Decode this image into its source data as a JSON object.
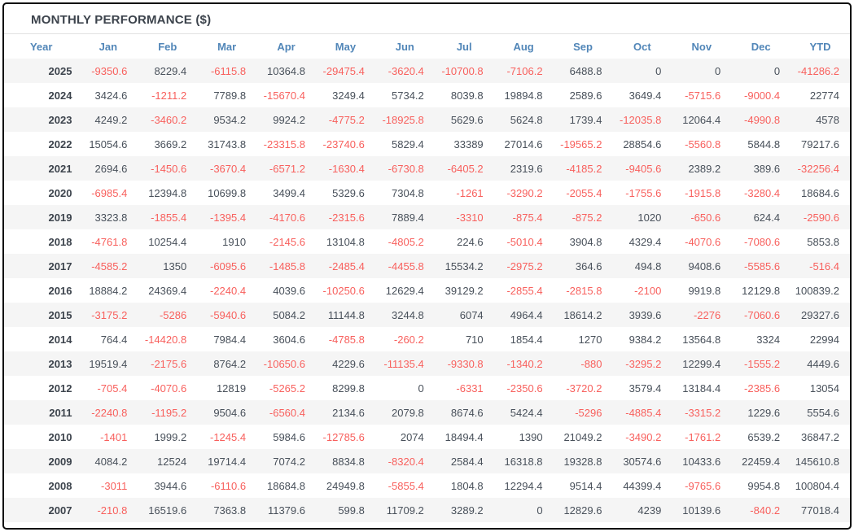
{
  "header": {
    "title": "MONTHLY PERFORMANCE ($)"
  },
  "colors": {
    "frame_border": "#0c0c0c",
    "title_text": "#3c434c",
    "header_blue": "#5186b8",
    "positive_value": "#48505a",
    "negative_value": "#f8605d",
    "row_stripe": "#f5f5f5",
    "title_divider": "#e2e2e2"
  },
  "chart_data": {
    "type": "table",
    "title": "MONTHLY PERFORMANCE ($)",
    "columns": [
      "Year",
      "Jan",
      "Feb",
      "Mar",
      "Apr",
      "May",
      "Jun",
      "Jul",
      "Aug",
      "Sep",
      "Oct",
      "Nov",
      "Dec",
      "YTD"
    ],
    "rows": [
      [
        "2025",
        "-9350.6",
        "8229.4",
        "-6115.8",
        "10364.8",
        "-29475.4",
        "-3620.4",
        "-10700.8",
        "-7106.2",
        "6488.8",
        "0",
        "0",
        "0",
        "-41286.2"
      ],
      [
        "2024",
        "3424.6",
        "-1211.2",
        "7789.8",
        "-15670.4",
        "3249.4",
        "5734.2",
        "8039.8",
        "19894.8",
        "2589.6",
        "3649.4",
        "-5715.6",
        "-9000.4",
        "22774"
      ],
      [
        "2023",
        "4249.2",
        "-3460.2",
        "9534.2",
        "9924.2",
        "-4775.2",
        "-18925.8",
        "5629.6",
        "5624.8",
        "1739.4",
        "-12035.8",
        "12064.4",
        "-4990.8",
        "4578"
      ],
      [
        "2022",
        "15054.6",
        "3669.2",
        "31743.8",
        "-23315.8",
        "-23740.6",
        "5829.4",
        "33389",
        "27014.6",
        "-19565.2",
        "28854.6",
        "-5560.8",
        "5844.8",
        "79217.6"
      ],
      [
        "2021",
        "2694.6",
        "-1450.6",
        "-3670.4",
        "-6571.2",
        "-1630.4",
        "-6730.8",
        "-6405.2",
        "2319.6",
        "-4185.2",
        "-9405.6",
        "2389.2",
        "389.6",
        "-32256.4"
      ],
      [
        "2020",
        "-6985.4",
        "12394.8",
        "10699.8",
        "3499.4",
        "5329.6",
        "7304.8",
        "-1261",
        "-3290.2",
        "-2055.4",
        "-1755.6",
        "-1915.8",
        "-3280.4",
        "18684.6"
      ],
      [
        "2019",
        "3323.8",
        "-1855.4",
        "-1395.4",
        "-4170.6",
        "-2315.6",
        "7889.4",
        "-3310",
        "-875.4",
        "-875.2",
        "1020",
        "-650.6",
        "624.4",
        "-2590.6"
      ],
      [
        "2018",
        "-4761.8",
        "10254.4",
        "1910",
        "-2145.6",
        "13104.8",
        "-4805.2",
        "224.6",
        "-5010.4",
        "3904.8",
        "4329.4",
        "-4070.6",
        "-7080.6",
        "5853.8"
      ],
      [
        "2017",
        "-4585.2",
        "1350",
        "-6095.6",
        "-1485.8",
        "-2485.4",
        "-4455.8",
        "15534.2",
        "-2975.2",
        "364.6",
        "494.8",
        "9408.6",
        "-5585.6",
        "-516.4"
      ],
      [
        "2016",
        "18884.2",
        "24369.4",
        "-2240.4",
        "4039.6",
        "-10250.6",
        "12629.4",
        "39129.2",
        "-2855.4",
        "-2815.8",
        "-2100",
        "9919.8",
        "12129.8",
        "100839.2"
      ],
      [
        "2015",
        "-3175.2",
        "-5286",
        "-5940.6",
        "5084.2",
        "11144.8",
        "3244.8",
        "6074",
        "4964.4",
        "18614.2",
        "3939.6",
        "-2276",
        "-7060.6",
        "29327.6"
      ],
      [
        "2014",
        "764.4",
        "-14420.8",
        "7984.4",
        "3604.6",
        "-4785.8",
        "-260.2",
        "710",
        "1854.4",
        "1270",
        "9384.2",
        "13564.8",
        "3324",
        "22994"
      ],
      [
        "2013",
        "19519.4",
        "-2175.6",
        "8764.2",
        "-10650.6",
        "4229.6",
        "-11135.4",
        "-9330.8",
        "-1340.2",
        "-880",
        "-3295.2",
        "12299.4",
        "-1555.2",
        "4449.6"
      ],
      [
        "2012",
        "-705.4",
        "-4070.6",
        "12819",
        "-5265.2",
        "8299.8",
        "0",
        "-6331",
        "-2350.6",
        "-3720.2",
        "3579.4",
        "13184.4",
        "-2385.6",
        "13054"
      ],
      [
        "2011",
        "-2240.8",
        "-1195.2",
        "9504.6",
        "-6560.4",
        "2134.6",
        "2079.8",
        "8674.6",
        "5424.4",
        "-5296",
        "-4885.4",
        "-3315.2",
        "1229.6",
        "5554.6"
      ],
      [
        "2010",
        "-1401",
        "1999.2",
        "-1245.4",
        "5984.6",
        "-12785.6",
        "2074",
        "18494.4",
        "1390",
        "21049.2",
        "-3490.2",
        "-1761.2",
        "6539.2",
        "36847.2"
      ],
      [
        "2009",
        "4084.2",
        "12524",
        "19714.4",
        "7074.2",
        "8834.8",
        "-8320.4",
        "2584.4",
        "16318.8",
        "19328.8",
        "30574.6",
        "10433.6",
        "22459.4",
        "145610.8"
      ],
      [
        "2008",
        "-3011",
        "3944.6",
        "-6110.6",
        "18684.8",
        "24949.8",
        "-5855.4",
        "1804.8",
        "12294.4",
        "9514.4",
        "44399.4",
        "-9765.6",
        "9954.8",
        "100804.4"
      ],
      [
        "2007",
        "-210.8",
        "16519.6",
        "7363.8",
        "11379.6",
        "599.8",
        "11709.2",
        "3289.2",
        "0",
        "12829.6",
        "4239",
        "10139.6",
        "-840.2",
        "77018.4"
      ]
    ]
  }
}
